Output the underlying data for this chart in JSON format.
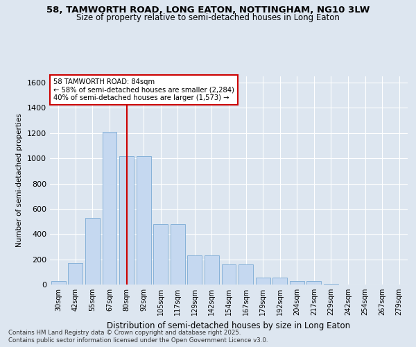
{
  "title1": "58, TAMWORTH ROAD, LONG EATON, NOTTINGHAM, NG10 3LW",
  "title2": "Size of property relative to semi-detached houses in Long Eaton",
  "xlabel": "Distribution of semi-detached houses by size in Long Eaton",
  "ylabel": "Number of semi-detached properties",
  "categories": [
    "30sqm",
    "42sqm",
    "55sqm",
    "67sqm",
    "80sqm",
    "92sqm",
    "105sqm",
    "117sqm",
    "129sqm",
    "142sqm",
    "154sqm",
    "167sqm",
    "179sqm",
    "192sqm",
    "204sqm",
    "217sqm",
    "229sqm",
    "242sqm",
    "254sqm",
    "267sqm",
    "279sqm"
  ],
  "values": [
    30,
    170,
    530,
    1210,
    1020,
    1020,
    480,
    480,
    230,
    230,
    160,
    160,
    55,
    55,
    25,
    30,
    5,
    2,
    0,
    0,
    0
  ],
  "bar_color": "#c5d8f0",
  "bar_edge_color": "#7aaad4",
  "vline_x": 4,
  "vline_color": "#cc0000",
  "annotation_title": "58 TAMWORTH ROAD: 84sqm",
  "annotation_line1": "← 58% of semi-detached houses are smaller (2,284)",
  "annotation_line2": "40% of semi-detached houses are larger (1,573) →",
  "background_color": "#dde6f0",
  "footer1": "Contains HM Land Registry data © Crown copyright and database right 2025.",
  "footer2": "Contains public sector information licensed under the Open Government Licence v3.0.",
  "ylim": [
    0,
    1650
  ],
  "yticks": [
    0,
    200,
    400,
    600,
    800,
    1000,
    1200,
    1400,
    1600
  ]
}
